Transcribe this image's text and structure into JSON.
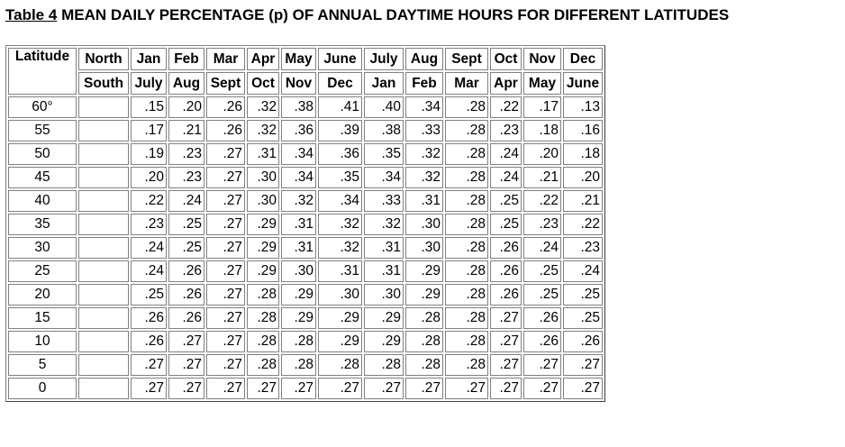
{
  "title": {
    "number": "Table 4",
    "text": "MEAN DAILY PERCENTAGE (p) OF ANNUAL DAYTIME HOURS FOR DIFFERENT LATITUDES"
  },
  "table": {
    "latitude_header": "Latitude",
    "north_label": "North",
    "south_label": "South",
    "north_months": [
      "Jan",
      "Feb",
      "Mar",
      "Apr",
      "May",
      "June",
      "July",
      "Aug",
      "Sept",
      "Oct",
      "Nov",
      "Dec"
    ],
    "south_months": [
      "July",
      "Aug",
      "Sept",
      "Oct",
      "Nov",
      "Dec",
      "Jan",
      "Feb",
      "Mar",
      "Apr",
      "May",
      "June"
    ],
    "rows": [
      {
        "latitude": "60°",
        "values": [
          ".15",
          ".20",
          ".26",
          ".32",
          ".38",
          ".41",
          ".40",
          ".34",
          ".28",
          ".22",
          ".17",
          ".13"
        ]
      },
      {
        "latitude": "55",
        "values": [
          ".17",
          ".21",
          ".26",
          ".32",
          ".36",
          ".39",
          ".38",
          ".33",
          ".28",
          ".23",
          ".18",
          ".16"
        ]
      },
      {
        "latitude": "50",
        "values": [
          ".19",
          ".23",
          ".27",
          ".31",
          ".34",
          ".36",
          ".35",
          ".32",
          ".28",
          ".24",
          ".20",
          ".18"
        ]
      },
      {
        "latitude": "45",
        "values": [
          ".20",
          ".23",
          ".27",
          ".30",
          ".34",
          ".35",
          ".34",
          ".32",
          ".28",
          ".24",
          ".21",
          ".20"
        ]
      },
      {
        "latitude": "40",
        "values": [
          ".22",
          ".24",
          ".27",
          ".30",
          ".32",
          ".34",
          ".33",
          ".31",
          ".28",
          ".25",
          ".22",
          ".21"
        ]
      },
      {
        "latitude": "35",
        "values": [
          ".23",
          ".25",
          ".27",
          ".29",
          ".31",
          ".32",
          ".32",
          ".30",
          ".28",
          ".25",
          ".23",
          ".22"
        ]
      },
      {
        "latitude": "30",
        "values": [
          ".24",
          ".25",
          ".27",
          ".29",
          ".31",
          ".32",
          ".31",
          ".30",
          ".28",
          ".26",
          ".24",
          ".23"
        ]
      },
      {
        "latitude": "25",
        "values": [
          ".24",
          ".26",
          ".27",
          ".29",
          ".30",
          ".31",
          ".31",
          ".29",
          ".28",
          ".26",
          ".25",
          ".24"
        ]
      },
      {
        "latitude": "20",
        "values": [
          ".25",
          ".26",
          ".27",
          ".28",
          ".29",
          ".30",
          ".30",
          ".29",
          ".28",
          ".26",
          ".25",
          ".25"
        ]
      },
      {
        "latitude": "15",
        "values": [
          ".26",
          ".26",
          ".27",
          ".28",
          ".29",
          ".29",
          ".29",
          ".28",
          ".28",
          ".27",
          ".26",
          ".25"
        ]
      },
      {
        "latitude": "10",
        "values": [
          ".26",
          ".27",
          ".27",
          ".28",
          ".28",
          ".29",
          ".29",
          ".28",
          ".28",
          ".27",
          ".26",
          ".26"
        ]
      },
      {
        "latitude": "5",
        "values": [
          ".27",
          ".27",
          ".27",
          ".28",
          ".28",
          ".28",
          ".28",
          ".28",
          ".28",
          ".27",
          ".27",
          ".27"
        ]
      },
      {
        "latitude": "0",
        "values": [
          ".27",
          ".27",
          ".27",
          ".27",
          ".27",
          ".27",
          ".27",
          ".27",
          ".27",
          ".27",
          ".27",
          ".27"
        ]
      }
    ]
  }
}
